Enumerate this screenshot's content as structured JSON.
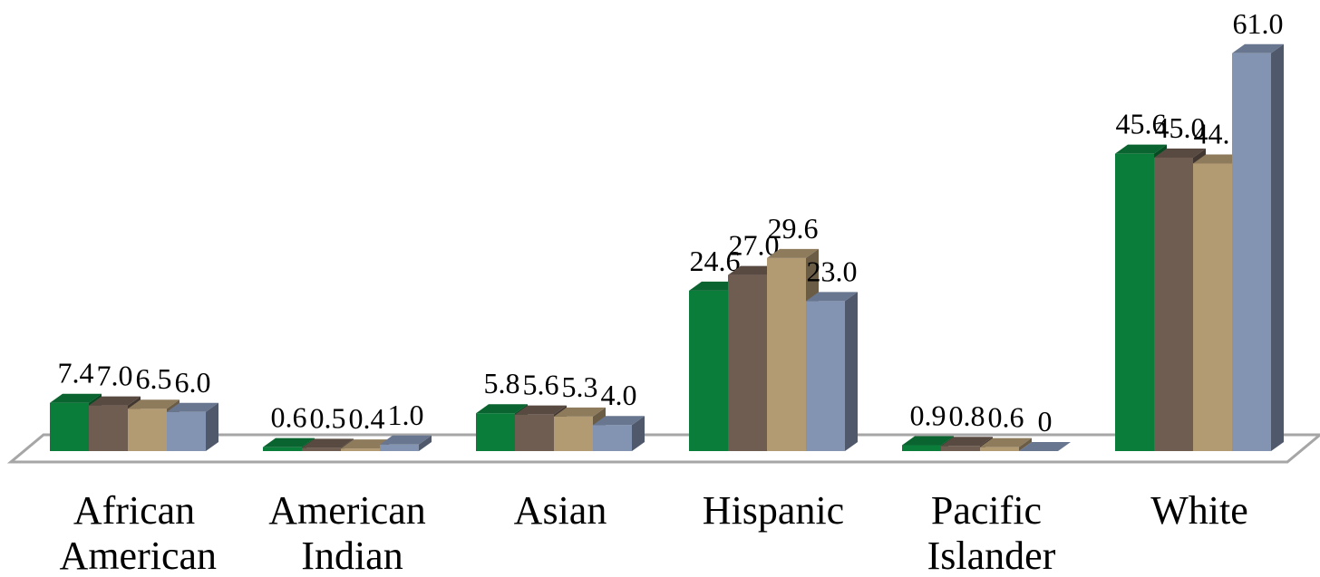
{
  "chart_data": {
    "type": "bar3d",
    "categories": [
      "African American",
      "American Indian",
      "Asian",
      "Hispanic",
      "Pacific Islander",
      "White"
    ],
    "series": [
      {
        "color": "#0b7d3b",
        "values": [
          7.4,
          0.6,
          5.8,
          24.6,
          0.9,
          45.6
        ],
        "value_labels": [
          "7.4",
          "0.6",
          "5.8",
          "24.6",
          "0.9",
          "45.6"
        ]
      },
      {
        "color": "#6f5d51",
        "values": [
          7.0,
          0.5,
          5.6,
          27.0,
          0.8,
          45.0
        ],
        "value_labels": [
          "7.0",
          "0.5",
          "5.6",
          "27.0",
          "0.8",
          "45.0"
        ]
      },
      {
        "color": "#b29a73",
        "values": [
          6.5,
          0.4,
          5.3,
          29.6,
          0.6,
          44.1
        ],
        "value_labels": [
          "6.5",
          "0.4",
          "5.3",
          "29.6",
          "0.6",
          "44.1"
        ]
      },
      {
        "color": "#8394b3",
        "values": [
          6.0,
          1.0,
          4.0,
          23.0,
          0,
          61.0
        ],
        "value_labels": [
          "6.0",
          "1.0",
          "4.0",
          "23.0",
          "0",
          "61.0"
        ]
      }
    ],
    "ylim": [
      0,
      65
    ]
  }
}
